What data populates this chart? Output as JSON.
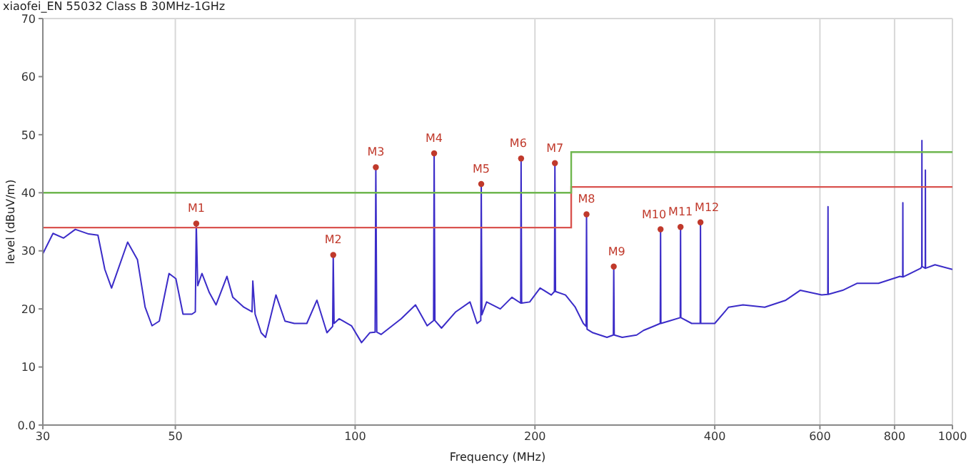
{
  "chart_data": {
    "type": "line",
    "title": "xiaofei_EN 55032 Class B 30MHz-1GHz",
    "xlabel": "Frequency (MHz)",
    "ylabel": "level (dBuV/m)",
    "log": "x",
    "grid": true,
    "xlim": [
      30,
      1000
    ],
    "xticks": [
      30,
      50,
      100,
      200,
      400,
      600,
      800,
      1000
    ],
    "ylim": [
      0,
      70
    ],
    "yticks": [
      {
        "value": 0,
        "label": "0.0"
      },
      10,
      20,
      30,
      40,
      50,
      60,
      70
    ],
    "series": [
      {
        "color": "#3b2cc8",
        "marker": "none",
        "x": [
          30,
          31.2,
          32.5,
          34.0,
          35.8,
          37.1,
          38.1,
          39.1,
          41.6,
          43.2,
          44.5,
          45.7,
          47.0,
          48.8,
          50.1,
          51.5,
          53.3,
          54.0,
          54.2,
          54.5,
          55.4,
          57.0,
          58.5,
          61.0,
          62.4,
          65.1,
          67.2,
          67.4,
          68.0,
          69.6,
          70.8,
          73.7,
          76.3,
          79.1,
          83.0,
          86.3,
          89.7,
          91.7,
          91.9,
          92.2,
          94.0,
          98.6,
          102.5,
          105.8,
          108.0,
          108.3,
          108.7,
          110.5,
          119.4,
          126.2,
          132,
          135.3,
          135.6,
          136,
          139.5,
          147.4,
          155.7,
          160,
          162.3,
          162.6,
          163,
          166,
          175,
          183,
          189.3,
          189.6,
          190,
          196,
          204,
          213,
          215.6,
          216,
          216.5,
          225,
          233.6,
          241,
          243.6,
          244,
          244.5,
          250,
          264,
          270.6,
          271,
          271.5,
          280,
          296,
          304,
          317.5,
          324.2,
          324.6,
          325,
          335,
          350.2,
          350.6,
          351,
          366,
          378.2,
          378.6,
          379,
          400,
          422,
          446,
          485,
          526,
          556,
          604,
          618.5,
          619,
          619.5,
          655,
          692,
          752,
          817,
          825.5,
          826,
          826.5,
          885,
          888.5,
          889,
          889.5,
          900.5,
          901,
          901.5,
          935,
          1000
        ],
        "values": [
          29.5,
          33,
          32.2,
          33.7,
          32.9,
          32.7,
          26.8,
          23.6,
          31.5,
          28.5,
          20.3,
          17.1,
          17.9,
          26.1,
          25.2,
          19.1,
          19.1,
          19.5,
          34.7,
          24,
          26.1,
          22.8,
          20.7,
          25.6,
          22,
          20.3,
          19.5,
          24.8,
          19.1,
          15.9,
          15.1,
          22.4,
          17.9,
          17.5,
          17.5,
          21.5,
          15.9,
          17,
          29.3,
          17.5,
          18.3,
          17.1,
          14.2,
          15.9,
          16,
          44.4,
          16,
          15.6,
          18.3,
          20.7,
          17.1,
          18,
          46.8,
          18,
          16.7,
          19.5,
          21.2,
          17.5,
          18,
          41.5,
          19,
          21.2,
          20,
          22,
          21,
          45.9,
          21,
          21.2,
          23.6,
          22.4,
          23,
          45.1,
          23,
          22.4,
          20.3,
          17.5,
          17,
          36.3,
          16.5,
          15.9,
          15.1,
          15.5,
          27.3,
          15.5,
          15.1,
          15.5,
          16.3,
          17.1,
          17.5,
          33.7,
          17.5,
          17.9,
          18.5,
          34.1,
          18.5,
          17.5,
          17.5,
          34.9,
          17.5,
          17.5,
          20.3,
          20.7,
          20.3,
          21.5,
          23.2,
          22.4,
          22.5,
          37.6,
          22.5,
          23.2,
          24.4,
          24.4,
          25.6,
          25.5,
          38.3,
          25.5,
          27,
          27.3,
          49,
          27.3,
          27,
          43.9,
          27,
          27.6,
          26.8
        ]
      },
      {
        "type": "step",
        "color": "#d9534f",
        "x": [
          30,
          230,
          1000
        ],
        "values": [
          34,
          41,
          41
        ]
      },
      {
        "type": "step",
        "color": "#6fb64f",
        "x": [
          30,
          230,
          1000
        ],
        "values": [
          40,
          47,
          47
        ]
      },
      {
        "type": "scatter",
        "color": "#c0392b",
        "marker": "circle",
        "x": [
          54.2,
          91.9,
          108.3,
          135.6,
          162.6,
          189.6,
          216,
          244,
          271,
          324.6,
          350.6,
          378.6
        ],
        "values": [
          34.7,
          29.3,
          44.4,
          46.8,
          41.5,
          45.9,
          45.1,
          36.3,
          27.3,
          33.7,
          34.1,
          34.9
        ]
      }
    ],
    "annotations": [
      {
        "text": "M1",
        "x": 54.2,
        "y": 34.7
      },
      {
        "text": "M2",
        "x": 91.9,
        "y": 29.3
      },
      {
        "text": "M3",
        "x": 108.3,
        "y": 44.4
      },
      {
        "text": "M4",
        "x": 135.6,
        "y": 46.8
      },
      {
        "text": "M5",
        "x": 162.6,
        "y": 41.5
      },
      {
        "text": "M6",
        "x": 189.6,
        "y": 45.9
      },
      {
        "text": "M7",
        "x": 216,
        "y": 45.1
      },
      {
        "text": "M8",
        "x": 244,
        "y": 36.3
      },
      {
        "text": "M9",
        "x": 271,
        "y": 27.3
      },
      {
        "text": "M10",
        "x": 324.6,
        "y": 33.7
      },
      {
        "text": "M11",
        "x": 350.6,
        "y": 34.1
      },
      {
        "text": "M12",
        "x": 378.6,
        "y": 34.9
      }
    ]
  }
}
